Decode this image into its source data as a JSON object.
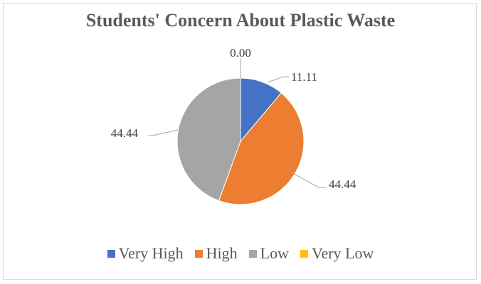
{
  "chart_data": {
    "type": "pie",
    "title": "Students' Concern About Plastic Waste",
    "categories": [
      "Very High",
      "High",
      "Low",
      "Very Low"
    ],
    "values": [
      11.11,
      44.44,
      44.44,
      0.0
    ],
    "data_labels": [
      "11.11",
      "44.44",
      "44.44",
      "0.00"
    ],
    "colors": [
      "#4472c4",
      "#ed7d31",
      "#a5a5a5",
      "#ffc000"
    ],
    "legend_position": "bottom"
  }
}
